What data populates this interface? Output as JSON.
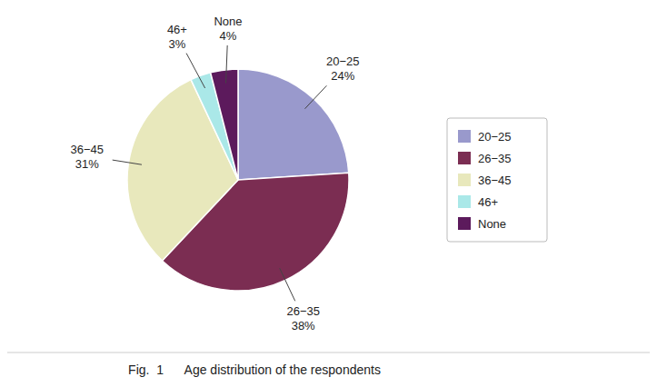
{
  "chart_data": {
    "type": "pie",
    "caption": "Fig.  1      Age distribution of the respondents",
    "categories": [
      "20−25",
      "26−35",
      "36−45",
      "46+",
      "None"
    ],
    "values": [
      24,
      38,
      31,
      3,
      4
    ],
    "value_labels": [
      "24%",
      "38%",
      "31%",
      "3%",
      "4%"
    ],
    "colors": [
      "#9999cc",
      "#7b2d52",
      "#e8e8bc",
      "#aae8e8",
      "#5c1a5c"
    ],
    "data_labels": true,
    "legend": "right"
  }
}
